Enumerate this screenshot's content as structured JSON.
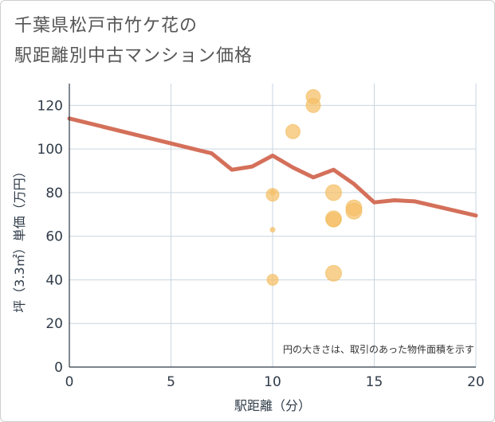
{
  "title_line1": "千葉県松戸市竹ケ花の",
  "title_line2": "駅距離別中古マンション価格",
  "chart_data": {
    "type": "scatter",
    "xlabel": "駅距離（分）",
    "ylabel": "坪（3.3㎡）単価（万円）",
    "xlim": [
      0,
      20
    ],
    "ylim": [
      0,
      130
    ],
    "xticks": [
      0,
      5,
      10,
      15,
      20
    ],
    "yticks": [
      0,
      20,
      40,
      60,
      80,
      100,
      120
    ],
    "grid": true,
    "annotation": "円の大きさは、取引のあった物件面積を示す",
    "colors": {
      "line": "#d4705a",
      "bubble": "#f5c06a"
    },
    "line_series": {
      "x": [
        0,
        7,
        8,
        9,
        10,
        11,
        12,
        13,
        14,
        15,
        16,
        17,
        20
      ],
      "y": [
        114,
        98,
        90.5,
        92,
        97,
        91.5,
        87,
        90.5,
        84,
        75.5,
        76.5,
        76,
        69.5
      ]
    },
    "bubbles": [
      {
        "x": 10,
        "y": 79,
        "size": 8
      },
      {
        "x": 10,
        "y": 80,
        "size": 3
      },
      {
        "x": 10,
        "y": 63,
        "size": 3
      },
      {
        "x": 10,
        "y": 40,
        "size": 7
      },
      {
        "x": 11,
        "y": 108,
        "size": 9
      },
      {
        "x": 12,
        "y": 124,
        "size": 9
      },
      {
        "x": 12,
        "y": 120,
        "size": 9
      },
      {
        "x": 13,
        "y": 80,
        "size": 10
      },
      {
        "x": 13,
        "y": 68,
        "size": 10
      },
      {
        "x": 13,
        "y": 67.5,
        "size": 9
      },
      {
        "x": 13,
        "y": 43,
        "size": 10
      },
      {
        "x": 14,
        "y": 73,
        "size": 10
      },
      {
        "x": 14,
        "y": 71.5,
        "size": 10
      }
    ]
  }
}
